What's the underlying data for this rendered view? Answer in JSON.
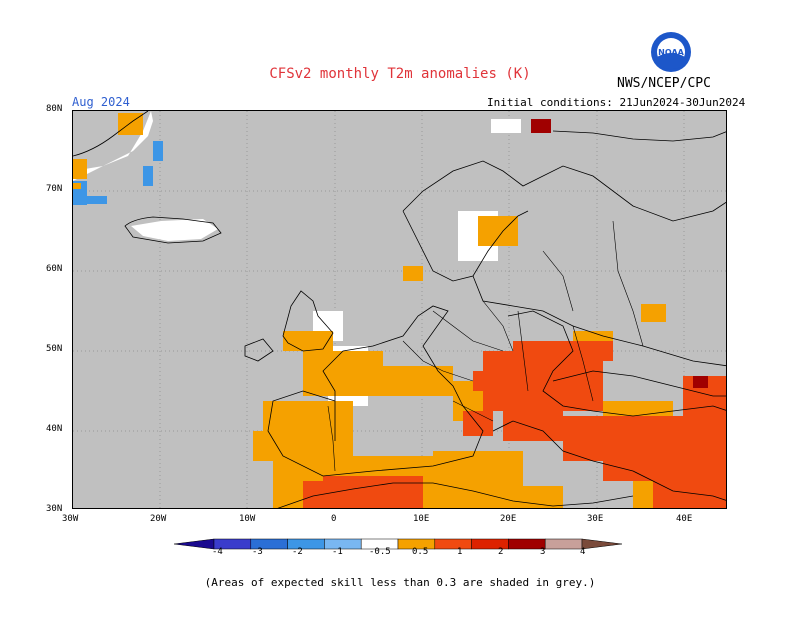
{
  "title": "CFSv2 monthly T2m anomalies (K)",
  "agency": "NWS/NCEP/CPC",
  "logo_text": "NOAA",
  "target_month": "Aug 2024",
  "initial_conditions": "Initial conditions: 21Jun2024-30Jun2024",
  "lat_labels": [
    "80N",
    "70N",
    "60N",
    "50N",
    "40N",
    "30N"
  ],
  "lon_labels": [
    "30W",
    "20W",
    "10W",
    "0",
    "10E",
    "20E",
    "30E",
    "40E"
  ],
  "colorbar": {
    "labels": [
      "-4",
      "-3",
      "-2",
      "-1",
      "-0.5",
      "0.5",
      "1",
      "2",
      "3",
      "4"
    ],
    "colors": [
      "#1a0a8f",
      "#3a3ccc",
      "#2b6fd6",
      "#3d96e6",
      "#79b7f2",
      "#ffffff",
      "#f5a100",
      "#f04a10",
      "#dd2200",
      "#a00000",
      "#c8a09a",
      "#7a4a3a"
    ]
  },
  "note": "(Areas of expected skill less than 0.3 are shaded in grey.)"
}
